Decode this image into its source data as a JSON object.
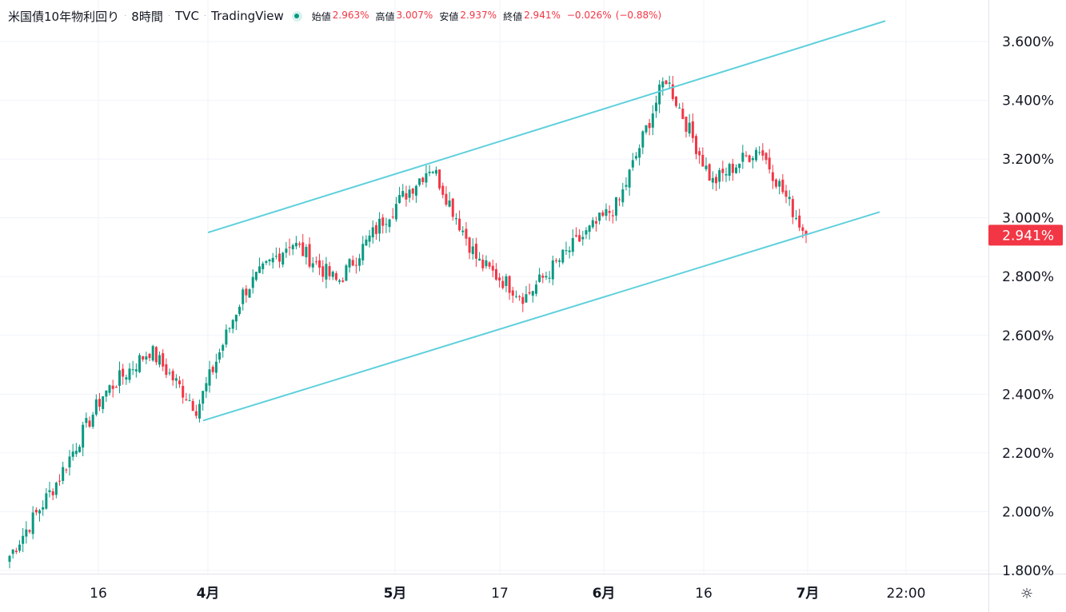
{
  "legend": {
    "symbol": "米国債10年物利回り",
    "interval": "8時間",
    "exchange": "TVC",
    "source": "TradingView",
    "open_label": "始値",
    "open": "2.963%",
    "high_label": "高値",
    "high": "3.007%",
    "low_label": "安値",
    "low": "2.937%",
    "close_label": "終値",
    "close": "2.941%",
    "change": "−0.026%",
    "change_pct": "(−0.88%)"
  },
  "colors": {
    "up": "#089981",
    "down": "#f23645",
    "channel": "#5fd0dc",
    "grid": "#f0f3fa",
    "price_tag": "#f23645"
  },
  "settings_icon": "gear-icon",
  "chart_data": {
    "type": "candlestick",
    "symbol": "米国債10年物利回り",
    "interval": "8時間",
    "y_axis": {
      "unit": "%",
      "range": [
        1.8,
        3.7
      ],
      "ticks": [
        "3.600%",
        "3.400%",
        "3.200%",
        "3.000%",
        "2.800%",
        "2.600%",
        "2.400%",
        "2.200%",
        "2.000%",
        "1.800%"
      ]
    },
    "x_axis": {
      "ticks": [
        "16",
        "4月",
        "5月",
        "17",
        "6月",
        "16",
        "7月",
        "22:00"
      ]
    },
    "last_price": 2.941,
    "last_price_label": "2.941%",
    "channel": {
      "upper": {
        "from": {
          "date": "4月",
          "value": 2.95
        },
        "to": {
          "date": "7月+",
          "value": 3.67
        }
      },
      "lower": {
        "from": {
          "date": "4月",
          "value": 2.31
        },
        "to": {
          "date": "7月+",
          "value": 3.02
        }
      }
    },
    "close_path": [
      {
        "date": "3月 上旬",
        "value": 1.85
      },
      {
        "date": "3月 中旬",
        "value": 2.1
      },
      {
        "date": "3月 下旬",
        "value": 2.4
      },
      {
        "date": "3月 末",
        "value": 2.55
      },
      {
        "date": "4月 初",
        "value": 2.35
      },
      {
        "date": "4月 上旬",
        "value": 2.75
      },
      {
        "date": "4月 中旬",
        "value": 2.92
      },
      {
        "date": "4月 下旬",
        "value": 2.78
      },
      {
        "date": "5月 初",
        "value": 3.0
      },
      {
        "date": "5月 上旬",
        "value": 3.18
      },
      {
        "date": "5月 中旬",
        "value": 2.85
      },
      {
        "date": "5月 下旬",
        "value": 2.73
      },
      {
        "date": "6月 初",
        "value": 2.9
      },
      {
        "date": "6月 上旬",
        "value": 3.05
      },
      {
        "date": "6月 中旬",
        "value": 3.48
      },
      {
        "date": "6月 下旬",
        "value": 3.12
      },
      {
        "date": "6月 末",
        "value": 3.24
      },
      {
        "date": "7月",
        "value": 2.941
      }
    ]
  }
}
